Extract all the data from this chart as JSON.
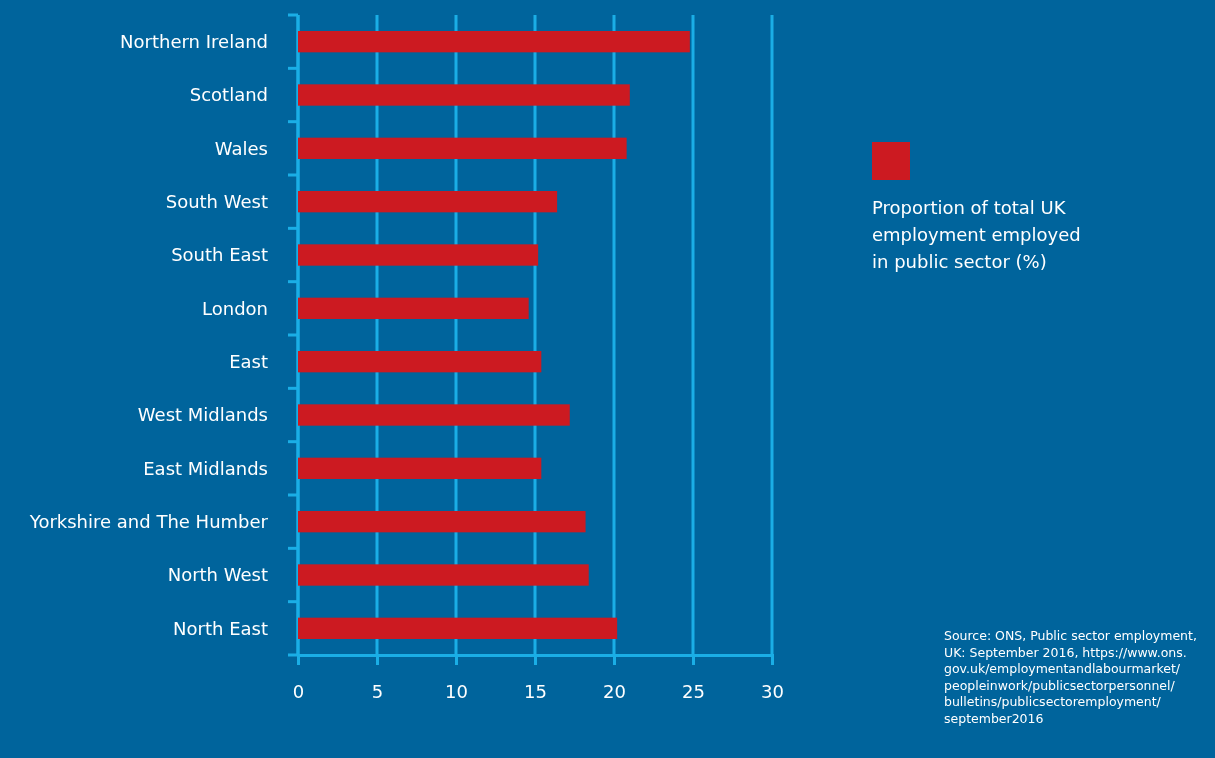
{
  "chart_data": {
    "type": "bar",
    "orientation": "horizontal",
    "categories": [
      "Northern Ireland",
      "Scotland",
      "Wales",
      "South West",
      "South East",
      "London",
      "East",
      "West Midlands",
      "East Midlands",
      "Yorkshire and The Humber",
      "North West",
      "North East"
    ],
    "series": [
      {
        "name": "Proportion of total UK employment employed in public sector (%)",
        "color": "#cc1a21",
        "values": [
          24.8,
          21.0,
          20.8,
          16.4,
          15.2,
          14.6,
          15.4,
          17.2,
          15.4,
          18.2,
          18.4,
          20.2
        ]
      }
    ],
    "xlim": [
      0,
      30
    ],
    "xticks": [
      0,
      5,
      10,
      15,
      20,
      25,
      30
    ],
    "grid": "x",
    "legend": "right",
    "annotations": [
      "Source: ONS, Public sector employment, UK: September 2016, https://www.ons.gov.uk/employmentandlabourmarket/peopleinwork/publicsectorpersonnel/bulletins/publicsectoremployment/september2016"
    ]
  }
}
